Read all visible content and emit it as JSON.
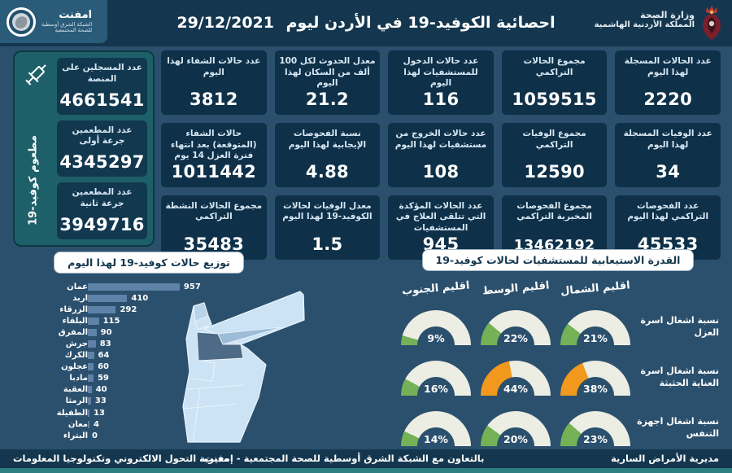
{
  "header": {
    "title": "احصائية الكوفيد-19 في الأردن ليوم",
    "date": "29/12/2021",
    "ministry_name": "وزارة الصحة",
    "kingdom_name": "المملكة الأردنية الهاشمية",
    "logo_name": "امفنت",
    "logo_sub1": "الشبكة الشرق أوسطية",
    "logo_sub2": "للصحة المجتمعية"
  },
  "vaccination_panel": {
    "vertical_label": "مطعوم كوفيد-19",
    "cards": [
      {
        "label": "عدد المسجلين على المنصة",
        "value": "4661541"
      },
      {
        "label": "عدد المطعمين جرعة أولى",
        "value": "4345297"
      },
      {
        "label": "عدد المطعمين جرعة ثانية",
        "value": "3949716"
      }
    ]
  },
  "stat_cards": [
    {
      "label": "عدد الحالات المسجلة لهذا اليوم",
      "value": "2220"
    },
    {
      "label": "مجموع الحالات التراكمي",
      "value": "1059515"
    },
    {
      "label": "عدد حالات الدخول للمستشفيات لهذا اليوم",
      "value": "116"
    },
    {
      "label": "معدل الحدوث لكل 100 ألف من السكان لهذا اليوم",
      "value": "21.2"
    },
    {
      "label": "عدد حالات الشفاء لهذا اليوم",
      "value": "3812"
    },
    {
      "label": "عدد الوفيات المسجلة لهذا اليوم",
      "value": "34"
    },
    {
      "label": "مجموع الوفيات التراكمي",
      "value": "12590"
    },
    {
      "label": "عدد حالات الخروج من مستشفيات لهذا اليوم",
      "value": "108"
    },
    {
      "label": "نسبة الفحوصات الإيجابية لهذا اليوم",
      "value": "4.88"
    },
    {
      "label": "حالات الشفاء (المتوقعة) بعد انتهاء فترة العزل 14 يوم",
      "value": "1011442"
    },
    {
      "label": "عدد الفحوصات التراكمي لهذا اليوم",
      "value": "45533"
    },
    {
      "label": "مجموع الفحوصات المخبرية التراكمي",
      "value": "13462192"
    },
    {
      "label": "عدد الحالات المؤكدة التي تتلقى العلاج في المستشفيات",
      "value": "945"
    },
    {
      "label": "معدل الوفيات لحالات الكوفيد-19 لهذا اليوم",
      "value": "1.5"
    },
    {
      "label": "مجموع الحالات النشطة التراكمي",
      "value": "35483"
    }
  ],
  "chart_data": [
    {
      "type": "bar",
      "title": "توزيع حالات كوفيد-19 لهذا اليوم",
      "orientation": "horizontal",
      "categories": [
        "عمان",
        "اربد",
        "الزرقاء",
        "البلقاء",
        "المفرق",
        "جرش",
        "الكرك",
        "عجلون",
        "مادبا",
        "العقبة",
        "الرمثا",
        "الطفيلة",
        "معان",
        "البتراء"
      ],
      "values": [
        957,
        410,
        292,
        115,
        90,
        83,
        64,
        60,
        59,
        40,
        33,
        13,
        4,
        0
      ],
      "xlim": [
        0,
        1000
      ],
      "bar_color": "#5e82a8"
    },
    {
      "type": "gauge",
      "title": "القدرة الاستيعابية للمستشفيات لحالات كوفيد-19",
      "unit": "%",
      "columns": [
        "اقليم الشمال",
        "اقليم الوسط",
        "اقليم الجنوب"
      ],
      "rows": [
        {
          "label": "نسبة اشغال اسرة العزل",
          "values": [
            21,
            22,
            9
          ],
          "colors": [
            "gauge_green",
            "gauge_green",
            "gauge_green"
          ]
        },
        {
          "label": "نسبة اشغال اسرة العناية الحثيثة",
          "values": [
            38,
            44,
            16
          ],
          "colors": [
            "gauge_orange",
            "gauge_orange",
            "gauge_green"
          ]
        },
        {
          "label": "نسبة اشغال اجهزة التنفس",
          "values": [
            23,
            20,
            14
          ],
          "colors": [
            "gauge_green",
            "gauge_green",
            "gauge_green"
          ]
        }
      ]
    }
  ],
  "colors": {
    "gauge_green": "#74b157",
    "gauge_orange": "#f2991d",
    "gauge_track": "#ecede3",
    "header_bg": "#14374f",
    "body_bg": "#2b506d",
    "card_bg": "#0e3049",
    "vax_panel_bg": "#1e6069",
    "map_base": "#cbe3f4",
    "map_irbid": "#b8d4ea",
    "map_zarqa": "#9cbcd8",
    "map_amman_dark": "#4d6a86",
    "bottom_strip": "#2e7f7f"
  },
  "footer": {
    "right": "مديرية الأمراض السارية",
    "center": "بالتعاون مع الشبكة الشرق أوسطية للصحة المجتمعية - إمفنت",
    "left": "مديرية التحول الالكتروني وتكنولوجيا المعلومات"
  }
}
